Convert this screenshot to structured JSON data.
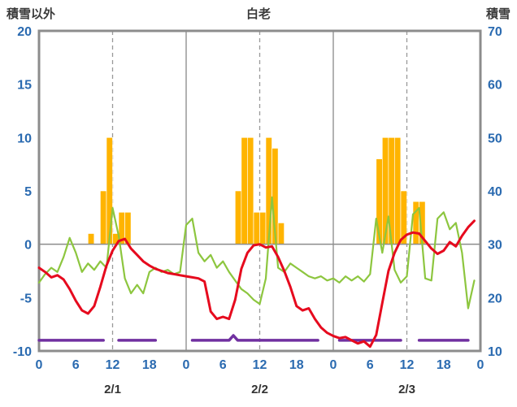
{
  "header": {
    "left_label": "積雪以外",
    "title": "白老",
    "right_label": "積雪"
  },
  "chart_data": {
    "type": "combo",
    "title": "白老",
    "left_axis": {
      "label": "積雪以外",
      "min": -10,
      "max": 20,
      "ticks": [
        20,
        15,
        10,
        5,
        0,
        -5,
        -10
      ]
    },
    "right_axis": {
      "label": "積雪",
      "min": 10,
      "max": 70,
      "ticks": [
        70,
        60,
        50,
        40,
        30,
        20,
        10
      ]
    },
    "x_axis": {
      "total_hours": 72,
      "tick_labels_per_day": [
        "0",
        "6",
        "12",
        "18"
      ],
      "tick_hours_per_day": [
        0,
        6,
        12,
        18
      ],
      "final_tick_label": "0",
      "day_labels": [
        "2/1",
        "2/2",
        "2/3"
      ],
      "day_boundary_gridlines": "solid",
      "noon_gridlines": "dashed",
      "zero_line": true
    },
    "series": {
      "bars": {
        "name": "orange-bars",
        "color": "#FFB400",
        "axis": "left",
        "points": [
          [
            8,
            1
          ],
          [
            10,
            5
          ],
          [
            11,
            10
          ],
          [
            12,
            1
          ],
          [
            13,
            3
          ],
          [
            14,
            3
          ],
          [
            32,
            5
          ],
          [
            33,
            10
          ],
          [
            34,
            10
          ],
          [
            35,
            3
          ],
          [
            36,
            3
          ],
          [
            37,
            10
          ],
          [
            38,
            9
          ],
          [
            39,
            2
          ],
          [
            55,
            8
          ],
          [
            56,
            10
          ],
          [
            57,
            10
          ],
          [
            58,
            10
          ],
          [
            59,
            5
          ],
          [
            61,
            4
          ],
          [
            62,
            4
          ]
        ]
      },
      "red_line": {
        "name": "red-line",
        "color": "#E60A1E",
        "axis": "left",
        "values": [
          -2.2,
          -2.6,
          -3.1,
          -2.9,
          -3.3,
          -4.2,
          -5.3,
          -6.2,
          -6.5,
          -5.8,
          -4.0,
          -2.0,
          -0.6,
          0.3,
          0.5,
          -0.4,
          -1.0,
          -1.6,
          -2.0,
          -2.3,
          -2.5,
          -2.7,
          -2.8,
          -2.9,
          -3.0,
          -3.1,
          -3.2,
          -3.5,
          -6.3,
          -7.0,
          -6.8,
          -7.0,
          -5.2,
          -2.3,
          -0.8,
          -0.1,
          0.0,
          -0.3,
          -0.2,
          -1.2,
          -2.5,
          -4.0,
          -5.8,
          -6.2,
          -6.0,
          -7.0,
          -7.8,
          -8.3,
          -8.6,
          -8.8,
          -8.7,
          -9.0,
          -9.3,
          -9.1,
          -9.6,
          -8.5,
          -5.5,
          -2.5,
          -0.8,
          0.4,
          0.9,
          1.1,
          1.0,
          0.3,
          -0.4,
          -0.9,
          -0.6,
          0.2,
          -0.2,
          0.8,
          1.6,
          2.2
        ]
      },
      "green_line": {
        "name": "green-line",
        "color": "#8DC63F",
        "axis": "left",
        "values": [
          -3.6,
          -2.8,
          -2.2,
          -2.6,
          -1.2,
          0.6,
          -0.8,
          -2.6,
          -1.8,
          -2.4,
          -1.6,
          -2.2,
          3.4,
          0.8,
          -3.2,
          -4.6,
          -3.8,
          -4.6,
          -2.6,
          -2.2,
          -2.6,
          -2.4,
          -2.8,
          -2.6,
          1.8,
          2.4,
          -0.8,
          -1.6,
          -1.0,
          -2.2,
          -1.6,
          -2.6,
          -3.4,
          -4.2,
          -4.6,
          -5.2,
          -5.6,
          -3.2,
          4.4,
          -2.2,
          -2.6,
          -1.8,
          -2.2,
          -2.6,
          -3.0,
          -3.2,
          -3.0,
          -3.4,
          -3.2,
          -3.6,
          -3.0,
          -3.4,
          -3.0,
          -3.5,
          -2.8,
          2.4,
          -0.8,
          2.6,
          -2.4,
          -3.6,
          -3.0,
          2.8,
          3.4,
          -3.2,
          -3.4,
          2.4,
          3.0,
          1.4,
          2.0,
          -0.8,
          -6.0,
          -3.4
        ]
      },
      "purple_line": {
        "name": "purple-line",
        "color": "#7030A0",
        "axis": "left",
        "segments": [
          [
            [
              0,
              -9
            ],
            [
              10.5,
              -9
            ]
          ],
          [
            [
              13,
              -9
            ],
            [
              19,
              -9
            ]
          ],
          [
            [
              25,
              -9
            ],
            [
              31,
              -9
            ],
            [
              31.7,
              -8.55
            ],
            [
              32.4,
              -9
            ],
            [
              45.5,
              -9
            ]
          ],
          [
            [
              49,
              -9
            ],
            [
              59,
              -9
            ]
          ],
          [
            [
              62,
              -9
            ],
            [
              70,
              -9
            ]
          ]
        ]
      }
    },
    "colors": {
      "frame": "#8C8C8C",
      "grid": "#999999",
      "tick_text": "#2A6AB0",
      "date_text": "#333333",
      "header_text": "#3A3A3A",
      "background": "#FFFFFF"
    }
  }
}
